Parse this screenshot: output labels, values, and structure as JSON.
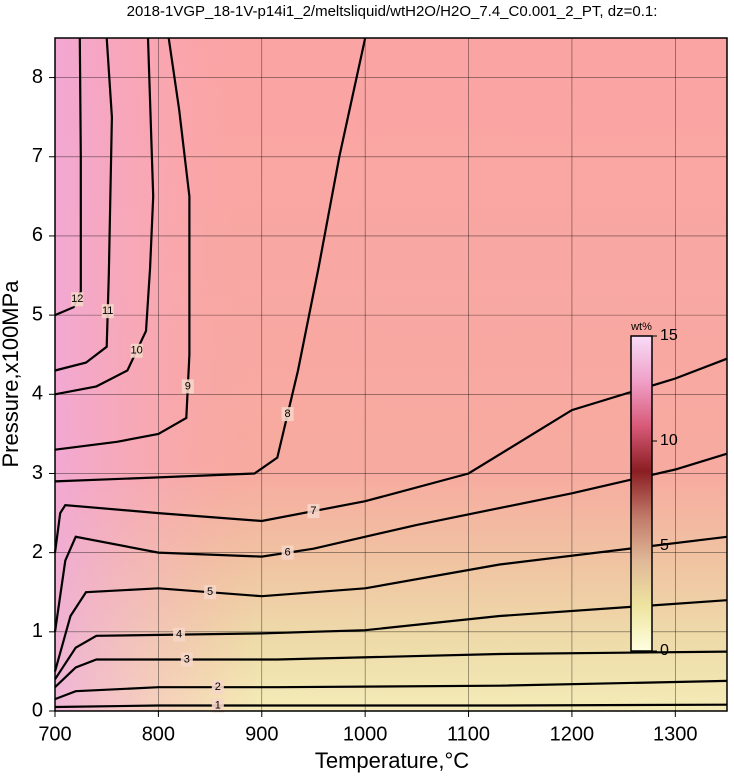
{
  "chart_data": {
    "type": "contour",
    "title": "2018-1VGP_18-1V-p14i1_2/meltsliquid/wtH2O/H2O_7.4_C0.001_2_PT, dz=0.1:",
    "x_label": "Temperature,°C",
    "y_label": "Pressure,x100MPa",
    "xlim": [
      700,
      1350
    ],
    "ylim": [
      0,
      8.5
    ],
    "xticks": [
      700,
      800,
      900,
      1000,
      1100,
      1200,
      1300
    ],
    "yticks": [
      0,
      1,
      2,
      3,
      4,
      5,
      6,
      7,
      8
    ],
    "grid": true,
    "contours": [
      {
        "level": 1,
        "x": [
          700,
          800,
          915,
          1130,
          1350
        ],
        "y": [
          0.05,
          0.07,
          0.07,
          0.07,
          0.08
        ]
      },
      {
        "level": 2,
        "x": [
          700,
          720,
          800,
          915,
          1130,
          1350
        ],
        "y": [
          0.15,
          0.25,
          0.3,
          0.3,
          0.32,
          0.38
        ]
      },
      {
        "level": 3,
        "x": [
          700,
          720,
          740,
          915,
          1130,
          1350
        ],
        "y": [
          0.3,
          0.55,
          0.65,
          0.65,
          0.72,
          0.75
        ]
      },
      {
        "level": 4,
        "x": [
          700,
          720,
          740,
          900,
          1000,
          1130,
          1350
        ],
        "y": [
          0.4,
          0.8,
          0.95,
          0.98,
          1.02,
          1.2,
          1.4
        ]
      },
      {
        "level": 5,
        "x": [
          700,
          715,
          730,
          800,
          900,
          1000,
          1130,
          1350
        ],
        "y": [
          0.5,
          1.2,
          1.5,
          1.55,
          1.45,
          1.55,
          1.85,
          2.2
        ]
      },
      {
        "level": 6,
        "x": [
          700,
          710,
          720,
          800,
          900,
          950,
          1050,
          1200,
          1300,
          1350
        ],
        "y": [
          1.0,
          1.9,
          2.2,
          2.0,
          1.95,
          2.05,
          2.35,
          2.75,
          3.05,
          3.25
        ]
      },
      {
        "level": 7,
        "x": [
          700,
          705,
          710,
          800,
          900,
          1000,
          1100,
          1200,
          1300,
          1350
        ],
        "y": [
          2.0,
          2.5,
          2.6,
          2.5,
          2.4,
          2.65,
          3.0,
          3.8,
          4.2,
          4.45
        ]
      },
      {
        "level": 8,
        "x": [
          700,
          800,
          893,
          915,
          935,
          955,
          975,
          1000
        ],
        "y": [
          2.9,
          2.95,
          3.0,
          3.2,
          4.3,
          5.6,
          7.0,
          8.5
        ]
      },
      {
        "level": 9,
        "x": [
          700,
          760,
          800,
          827,
          830,
          830,
          820,
          810
        ],
        "y": [
          3.3,
          3.4,
          3.5,
          3.7,
          4.5,
          6.5,
          7.6,
          8.5
        ]
      },
      {
        "level": 10,
        "x": [
          700,
          740,
          770,
          788,
          792,
          795,
          790
        ],
        "y": [
          4.0,
          4.1,
          4.3,
          4.8,
          5.6,
          6.5,
          8.5
        ]
      },
      {
        "level": 11,
        "x": [
          700,
          730,
          750,
          752,
          755,
          750
        ],
        "y": [
          4.3,
          4.4,
          4.6,
          5.5,
          7.5,
          8.5
        ]
      },
      {
        "level": 12,
        "x": [
          700,
          718,
          725,
          725,
          724
        ],
        "y": [
          5.0,
          5.1,
          5.3,
          7.0,
          8.5
        ]
      }
    ],
    "colorbar": {
      "label": "wt%",
      "lim": [
        0,
        15
      ],
      "ticks": [
        0,
        5,
        10,
        15
      ],
      "colors": [
        "#ffffe0",
        "#eee4a0",
        "#e0b898",
        "#c07868",
        "#8a1e22",
        "#d85a78",
        "#f0a0c8",
        "#f8dcf8"
      ]
    },
    "line_color": "#000000"
  }
}
